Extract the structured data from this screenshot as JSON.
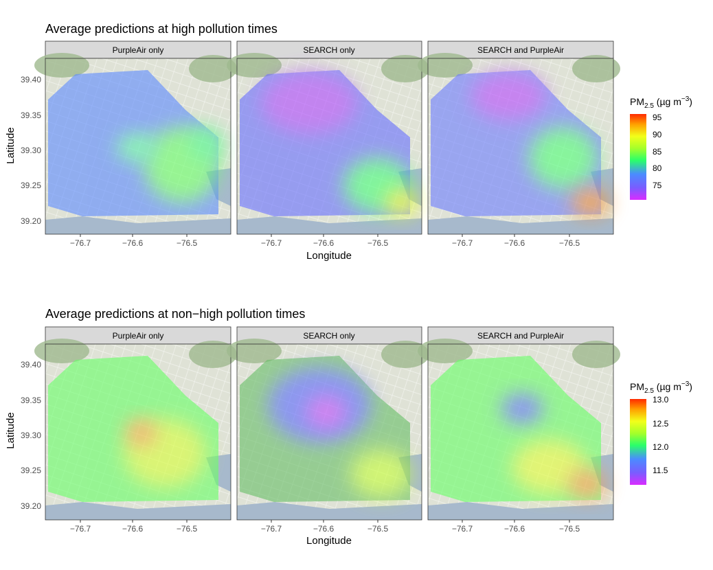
{
  "figure": {
    "xlabel": "Longitude",
    "ylabel": "Latitude",
    "x_ticks": [
      "−76.7",
      "−76.6",
      "−76.5"
    ],
    "y_ticks": [
      "39.40",
      "39.35",
      "39.30",
      "39.25",
      "39.20"
    ]
  },
  "rows": [
    {
      "title": "Average predictions at high pollution times",
      "panels": [
        {
          "label": "PurpleAir only"
        },
        {
          "label": "SEARCH only"
        },
        {
          "label": "SEARCH and PurpleAir"
        }
      ],
      "legend": {
        "title_main": "PM",
        "title_sub": "2.5",
        "title_unit": " (µg m",
        "title_sup": "−3",
        "title_close": ")",
        "ticks": [
          "95",
          "90",
          "85",
          "80",
          "75"
        ]
      }
    },
    {
      "title": "Average predictions at non−high pollution times",
      "panels": [
        {
          "label": "PurpleAir only"
        },
        {
          "label": "SEARCH only"
        },
        {
          "label": "SEARCH and PurpleAir"
        }
      ],
      "legend": {
        "title_main": "PM",
        "title_sub": "2.5",
        "title_unit": " (µg m",
        "title_sup": "−3",
        "title_close": ")",
        "ticks": [
          "13.0",
          "12.5",
          "12.0",
          "11.5"
        ]
      }
    }
  ],
  "colors": {
    "strip_bg": "#d9d9d9",
    "map_land": "#dfe2d6",
    "map_water": "#a7b9cc",
    "map_forest": "#9fb98e",
    "scale": [
      "#ff2a00",
      "#ffa000",
      "#f2ff1a",
      "#a5ff2a",
      "#2aff6a",
      "#4a8cff",
      "#7a5cff",
      "#d92cff"
    ]
  }
}
